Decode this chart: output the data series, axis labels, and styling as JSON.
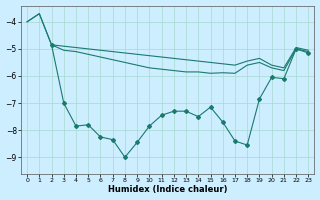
{
  "xlabel": "Humidex (Indice chaleur)",
  "background_color": "#cceeff",
  "line_color": "#1a7a6e",
  "xlim": [
    -0.5,
    23.5
  ],
  "ylim": [
    -9.6,
    -3.4
  ],
  "yticks": [
    -9,
    -8,
    -7,
    -6,
    -5,
    -4
  ],
  "xticks": [
    0,
    1,
    2,
    3,
    4,
    5,
    6,
    7,
    8,
    9,
    10,
    11,
    12,
    13,
    14,
    15,
    16,
    17,
    18,
    19,
    20,
    21,
    22,
    23
  ],
  "line1_x": [
    0,
    1,
    2,
    3,
    4,
    5,
    6,
    7,
    8,
    9,
    10,
    11,
    12,
    13,
    14,
    15,
    16,
    17,
    18,
    19,
    20,
    21,
    22,
    23
  ],
  "line1_y": [
    -4.0,
    -3.7,
    -4.85,
    -4.9,
    -4.95,
    -5.0,
    -5.05,
    -5.1,
    -5.15,
    -5.2,
    -5.25,
    -5.3,
    -5.35,
    -5.4,
    -5.45,
    -5.5,
    -5.55,
    -5.6,
    -5.45,
    -5.35,
    -5.6,
    -5.7,
    -4.95,
    -5.05
  ],
  "line2_x": [
    0,
    1,
    2,
    3,
    4,
    5,
    6,
    7,
    8,
    9,
    10,
    11,
    12,
    13,
    14,
    15,
    16,
    17,
    18,
    19,
    20,
    21,
    22,
    23
  ],
  "line2_y": [
    -4.0,
    -3.7,
    -4.85,
    -5.05,
    -5.1,
    -5.2,
    -5.3,
    -5.4,
    -5.5,
    -5.6,
    -5.7,
    -5.75,
    -5.8,
    -5.85,
    -5.85,
    -5.9,
    -5.88,
    -5.9,
    -5.6,
    -5.5,
    -5.7,
    -5.8,
    -5.0,
    -5.1
  ],
  "line3_x": [
    2,
    3,
    4,
    5,
    6,
    7,
    8,
    9,
    10,
    11,
    12,
    13,
    14,
    15,
    16,
    17,
    18,
    19,
    20,
    21,
    22,
    23
  ],
  "line3_y": [
    -4.85,
    -7.0,
    -7.85,
    -7.8,
    -8.25,
    -8.35,
    -9.0,
    -8.45,
    -7.85,
    -7.45,
    -7.3,
    -7.3,
    -7.5,
    -7.15,
    -7.7,
    -8.4,
    -8.55,
    -6.85,
    -6.05,
    -6.1,
    -5.0,
    -5.15
  ]
}
